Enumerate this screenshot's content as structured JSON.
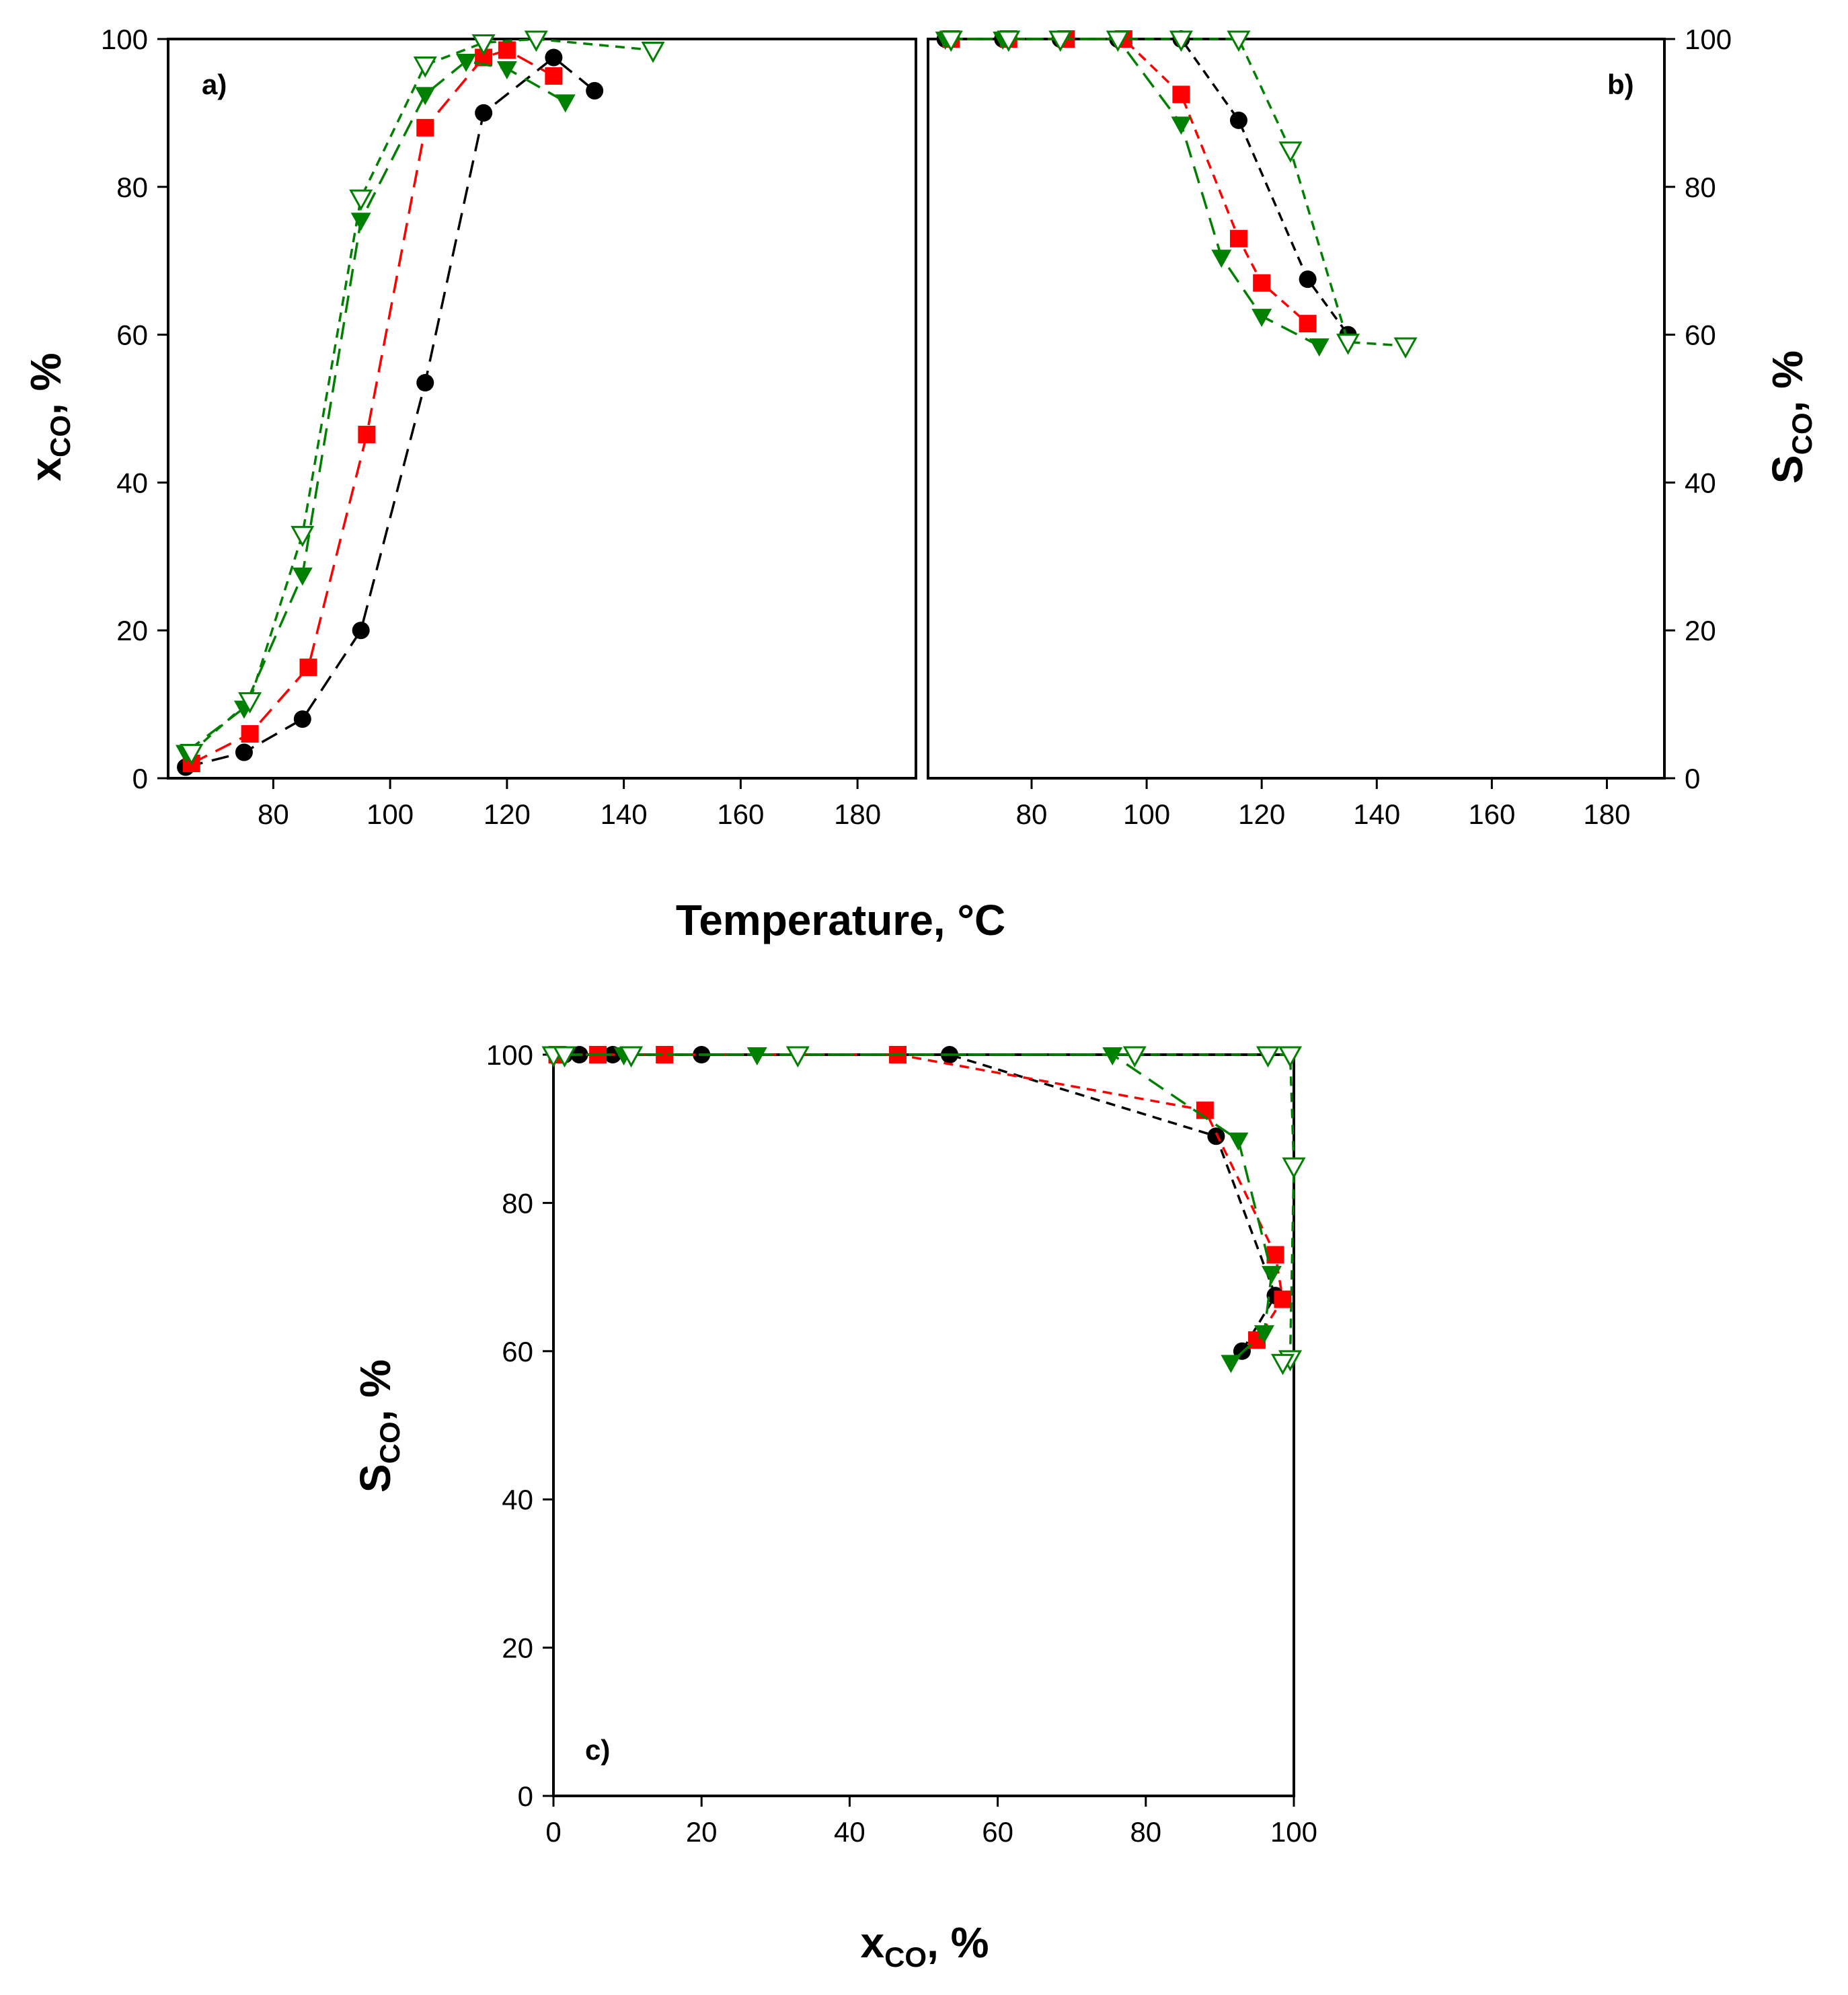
{
  "chart_data": [
    {
      "id": "a",
      "type": "scatter",
      "panel_label": "a)",
      "xlabel": "Temperature, °C",
      "ylabel_main": "x",
      "ylabel_sub": "CO",
      "ylabel_tail": ", %",
      "xlim": [
        62,
        190
      ],
      "ylim": [
        0,
        100
      ],
      "xticks": [
        80,
        100,
        120,
        140,
        160,
        180
      ],
      "yticks": [
        0,
        20,
        40,
        60,
        80,
        100
      ],
      "series": [
        {
          "name": "black-circles",
          "color": "#000000",
          "marker": "circle",
          "dash": "26,14",
          "x": [
            65,
            75,
            85,
            95,
            106,
            116,
            128,
            135
          ],
          "y": [
            1.5,
            3.5,
            8,
            20,
            53.5,
            90,
            97.5,
            93
          ]
        },
        {
          "name": "red-squares",
          "color": "#ff0000",
          "marker": "square",
          "dash": "26,14",
          "x": [
            66,
            76,
            86,
            96,
            106,
            116,
            120,
            128
          ],
          "y": [
            2,
            6,
            15,
            46.5,
            88,
            97.5,
            98.5,
            95
          ]
        },
        {
          "name": "green-filled-triangles",
          "color": "#008000",
          "marker": "tri-filled",
          "dash": "26,14",
          "x": [
            65,
            75,
            85,
            95,
            106,
            113,
            120,
            130
          ],
          "y": [
            3.5,
            9.5,
            27.5,
            75.5,
            92.5,
            97,
            96,
            91.5
          ]
        },
        {
          "name": "green-open-triangles",
          "color": "#008000",
          "marker": "tri-open",
          "dash": "14,10",
          "x": [
            66,
            76,
            85,
            95,
            106,
            116,
            125,
            145
          ],
          "y": [
            3.5,
            10.5,
            33,
            78.5,
            96.5,
            99.5,
            100,
            98.5
          ]
        }
      ]
    },
    {
      "id": "b",
      "type": "scatter",
      "panel_label": "b)",
      "ylabel_main": "S",
      "ylabel_sub": "CO",
      "ylabel_tail": ", %",
      "xlim": [
        62,
        190
      ],
      "ylim": [
        0,
        100
      ],
      "xticks": [
        80,
        100,
        120,
        140,
        160,
        180
      ],
      "yticks": [
        0,
        20,
        40,
        60,
        80,
        100
      ],
      "series": [
        {
          "name": "black-circles",
          "color": "#000000",
          "marker": "circle",
          "dash": "14,10",
          "x": [
            65,
            75,
            85,
            95,
            106,
            116,
            128,
            135
          ],
          "y": [
            100,
            100,
            100,
            100,
            100,
            89,
            67.5,
            60
          ]
        },
        {
          "name": "red-squares",
          "color": "#ff0000",
          "marker": "square",
          "dash": "14,10",
          "x": [
            66,
            76,
            86,
            96,
            106,
            116,
            120,
            128
          ],
          "y": [
            100,
            100,
            100,
            100,
            92.5,
            73,
            67,
            61.5
          ]
        },
        {
          "name": "green-filled-triangles",
          "color": "#008000",
          "marker": "tri-filled",
          "dash": "26,14",
          "x": [
            65,
            75,
            85,
            95,
            106,
            113,
            120,
            130
          ],
          "y": [
            100,
            100,
            100,
            100,
            88.5,
            70.5,
            62.5,
            58.5
          ]
        },
        {
          "name": "green-open-triangles",
          "color": "#008000",
          "marker": "tri-open",
          "dash": "14,10",
          "x": [
            66,
            76,
            85,
            95,
            106,
            116,
            125,
            135,
            145
          ],
          "y": [
            100,
            100,
            100,
            100,
            100,
            100,
            85,
            59,
            58.5
          ]
        }
      ]
    },
    {
      "id": "c",
      "type": "scatter",
      "panel_label": "c)",
      "xlabel_main": "x",
      "xlabel_sub": "CO",
      "xlabel_tail": ", %",
      "ylabel_main": "S",
      "ylabel_sub": "CO",
      "ylabel_tail": ", %",
      "xlim": [
        0,
        100
      ],
      "ylim": [
        0,
        100
      ],
      "xticks": [
        0,
        20,
        40,
        60,
        80,
        100
      ],
      "yticks": [
        0,
        20,
        40,
        60,
        80,
        100
      ],
      "series": [
        {
          "name": "black-circles",
          "color": "#000000",
          "marker": "circle",
          "dash": "14,10",
          "x": [
            1.5,
            3.5,
            8,
            20,
            53.5,
            89.5,
            97.5,
            93
          ],
          "y": [
            100,
            100,
            100,
            100,
            100,
            89,
            67.5,
            60
          ]
        },
        {
          "name": "red-squares",
          "color": "#ff0000",
          "marker": "square",
          "dash": "14,10",
          "x": [
            0.5,
            6,
            15,
            46.5,
            88,
            97.5,
            98.5,
            95
          ],
          "y": [
            100,
            100,
            100,
            100,
            92.5,
            73,
            67,
            61.5
          ]
        },
        {
          "name": "green-filled-triangles",
          "color": "#008000",
          "marker": "tri-filled",
          "dash": "26,14",
          "x": [
            1.5,
            9.5,
            27.5,
            75.5,
            92.5,
            97,
            96,
            91.5
          ],
          "y": [
            100,
            100,
            100,
            100,
            88.5,
            70.5,
            62.5,
            58.5
          ]
        },
        {
          "name": "green-open-triangles",
          "color": "#008000",
          "marker": "tri-open",
          "dash": "14,10",
          "x": [
            0,
            1.5,
            10.5,
            33,
            78.5,
            96.5,
            99.5,
            100,
            99.5,
            98.5
          ],
          "y": [
            100,
            100,
            100,
            100,
            100,
            100,
            100,
            85,
            59,
            58.5
          ]
        }
      ]
    }
  ]
}
